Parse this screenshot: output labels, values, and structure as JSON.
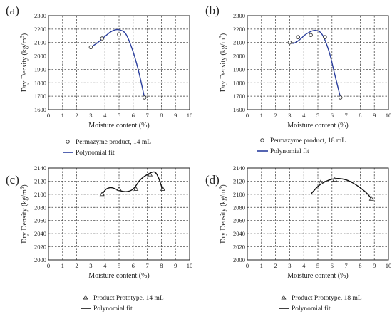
{
  "colors": {
    "fit_blue": "#2b3f9e",
    "fit_black": "#111111",
    "marker": "#333333"
  },
  "chart_data": [
    {
      "panel": "(a)",
      "type": "scatter",
      "xlabel": "Moisture content (%)",
      "ylabel": "Dry Density (kg/m",
      "ylabel_sup": "3",
      "ylabel_tail": ")",
      "xlim": [
        0,
        10
      ],
      "ylim": [
        1600,
        2300
      ],
      "xticks": [
        "0",
        "1",
        "2",
        "3",
        "4",
        "5",
        "6",
        "7",
        "8",
        "9",
        "10"
      ],
      "yticks": [
        "1600",
        "1700",
        "1800",
        "1900",
        "2000",
        "2100",
        "2200",
        "2300"
      ],
      "marker": "circle",
      "series": [
        {
          "name": "Permazyme product, 14 mL",
          "kind": "points",
          "x": [
            3.0,
            3.8,
            5.0,
            6.8
          ],
          "y": [
            2065,
            2130,
            2160,
            1690
          ]
        },
        {
          "name": "Polynomial fit",
          "kind": "line",
          "x": [
            3.0,
            3.5,
            4.0,
            4.5,
            5.0,
            5.5,
            6.0,
            6.4,
            6.8
          ],
          "y": [
            2065,
            2100,
            2145,
            2185,
            2195,
            2160,
            2030,
            1880,
            1690
          ]
        }
      ]
    },
    {
      "panel": "(b)",
      "type": "scatter",
      "xlabel": "Moisture content (%)",
      "ylabel": "Dry Density (kg/m",
      "ylabel_sup": "3",
      "ylabel_tail": ")",
      "xlim": [
        0,
        10
      ],
      "ylim": [
        1600,
        2300
      ],
      "xticks": [
        "0",
        "1",
        "2",
        "3",
        "4",
        "5",
        "6",
        "7",
        "8",
        "9",
        "10"
      ],
      "yticks": [
        "1600",
        "1700",
        "1800",
        "1900",
        "2000",
        "2100",
        "2200",
        "2300"
      ],
      "marker": "circle",
      "series": [
        {
          "name": "Permazyme product, 18 mL",
          "kind": "points",
          "x": [
            3.0,
            3.6,
            4.5,
            5.5,
            6.6
          ],
          "y": [
            2100,
            2140,
            2155,
            2140,
            1690
          ]
        },
        {
          "name": "Polynomial fit",
          "kind": "line",
          "x": [
            3.0,
            3.3,
            3.7,
            4.2,
            4.8,
            5.3,
            5.8,
            6.2,
            6.6
          ],
          "y": [
            2100,
            2095,
            2120,
            2165,
            2190,
            2160,
            2030,
            1860,
            1690
          ]
        }
      ]
    },
    {
      "panel": "(c)",
      "type": "scatter",
      "xlabel": "Moisture content (%)",
      "ylabel": "Dry Density (kg/m",
      "ylabel_sup": "3",
      "ylabel_tail": ")",
      "xlim": [
        0,
        10
      ],
      "ylim": [
        2000,
        2140
      ],
      "xticks": [
        "0",
        "1",
        "2",
        "3",
        "4",
        "5",
        "6",
        "7",
        "8",
        "9",
        "10"
      ],
      "yticks": [
        "2000",
        "2020",
        "2040",
        "2060",
        "2080",
        "2100",
        "2120",
        "2140"
      ],
      "marker": "triangle",
      "series": [
        {
          "name": "Product Prototype, 14 mL",
          "kind": "points",
          "x": [
            3.8,
            5.0,
            6.2,
            7.2,
            8.1
          ],
          "y": [
            2100,
            2108,
            2108,
            2130,
            2108
          ]
        },
        {
          "name": "Polynomial fit",
          "kind": "line",
          "x": [
            3.8,
            4.1,
            4.5,
            5.0,
            5.5,
            6.0,
            6.5,
            7.0,
            7.5,
            7.8,
            8.1
          ],
          "y": [
            2100,
            2108,
            2110,
            2106,
            2104,
            2108,
            2122,
            2130,
            2134,
            2125,
            2106
          ]
        }
      ]
    },
    {
      "panel": "(d)",
      "type": "scatter",
      "xlabel": "Moisture content (%)",
      "ylabel": "Dry Density (kg/m",
      "ylabel_sup": "3",
      "ylabel_tail": ")",
      "xlim": [
        0,
        10
      ],
      "ylim": [
        2000,
        2140
      ],
      "xticks": [
        "0",
        "1",
        "2",
        "3",
        "4",
        "5",
        "6",
        "7",
        "8",
        "9",
        "10"
      ],
      "yticks": [
        "2000",
        "2020",
        "2040",
        "2060",
        "2080",
        "2100",
        "2120",
        "2140"
      ],
      "marker": "triangle",
      "series": [
        {
          "name": "Product Prototype, 18 mL",
          "kind": "points",
          "x": [
            5.2,
            6.2,
            8.8
          ],
          "y": [
            2118,
            2122,
            2093
          ]
        },
        {
          "name": "Polynomial fit",
          "kind": "line",
          "x": [
            4.5,
            5.0,
            5.5,
            6.0,
            6.5,
            7.0,
            7.5,
            8.0,
            8.5,
            8.8
          ],
          "y": [
            2100,
            2112,
            2119,
            2123,
            2124,
            2122,
            2117,
            2110,
            2101,
            2093
          ]
        }
      ]
    }
  ]
}
